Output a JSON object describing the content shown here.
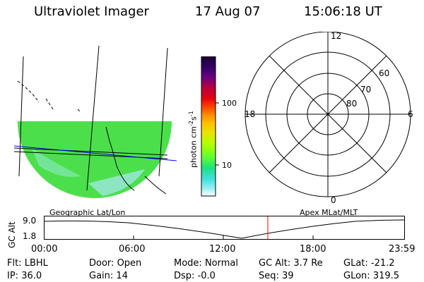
{
  "header": {
    "instrument": "Ultraviolet Imager",
    "date": "17 Aug 07",
    "time": "15:06:18 UT"
  },
  "colorbar": {
    "unit_label": "photon cm",
    "unit_exp1": "-2",
    "unit_s": "s",
    "unit_exp2": "-1",
    "tick_100": "100",
    "tick_10": "10",
    "colors": [
      "#1a0033",
      "#330066",
      "#6a0080",
      "#b30040",
      "#e60010",
      "#ff4000",
      "#ff8c00",
      "#ffc000",
      "#e6e600",
      "#b0ff00",
      "#60ff30",
      "#20e080",
      "#40e0e0",
      "#a0f0f0",
      "#ffffff"
    ]
  },
  "geo_panel": {
    "label": "Geographic Lat/Lon",
    "fill_color": "#4be04b"
  },
  "polar_panel": {
    "label": "Apex MLat/MLT",
    "mlt_12": "12",
    "mlt_18": "18",
    "mlt_6": "6",
    "mlt_0": "0",
    "lat_60": "60",
    "lat_70": "70",
    "lat_80": "80"
  },
  "altitude_plot": {
    "ylabel": "GC Alt",
    "y_top": "9.0",
    "y_bottom": "1.8",
    "x_ticks": [
      "00:00",
      "06:00",
      "12:00",
      "18:00",
      "23:59"
    ],
    "marker_color": "#ff0000"
  },
  "status": {
    "flt_label": "Flt:",
    "flt_value": "LBHL",
    "ip_label": "IP:",
    "ip_value": "36.0",
    "door_label": "Door:",
    "door_value": "Open",
    "gain_label": "Gain:",
    "gain_value": "14",
    "mode_label": "Mode:",
    "mode_value": "Normal",
    "dsp_label": "Dsp:",
    "dsp_value": "-0.0",
    "gcalt_label": "GC Alt:",
    "gcalt_value": "3.7 Re",
    "seq_label": "Seq:",
    "seq_value": "39",
    "glat_label": "GLat:",
    "glat_value": "-21.2",
    "glon_label": "GLon:",
    "glon_value": "319.5"
  }
}
